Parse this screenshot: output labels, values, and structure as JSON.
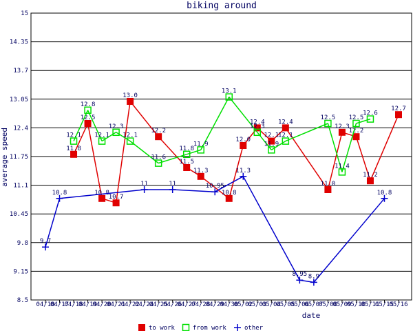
{
  "chart_data": {
    "type": "line",
    "title": "biking around",
    "x_label": "date",
    "y_label": "average speed",
    "categories": [
      "04/10",
      "04/17",
      "04/18",
      "04/19",
      "04/20",
      "04/21",
      "04/22",
      "04/24",
      "04/25",
      "04/26",
      "04/27",
      "04/28",
      "04/29",
      "04/30",
      "05/02",
      "05/03",
      "05/04",
      "05/05",
      "05/06",
      "05/07",
      "05/08",
      "05/09",
      "05/10",
      "05/11",
      "05/15",
      "05/16"
    ],
    "series": [
      {
        "name": "to work",
        "color": "#e00000",
        "marker": "filled-square",
        "values": [
          null,
          null,
          11.8,
          12.5,
          10.8,
          10.7,
          13.0,
          null,
          12.2,
          null,
          11.5,
          11.3,
          null,
          10.8,
          12.0,
          12.4,
          12.1,
          12.4,
          null,
          null,
          11.0,
          12.3,
          12.2,
          11.2,
          null,
          12.7
        ],
        "value_labels": [
          null,
          null,
          "11.8",
          "12.5",
          "10.8",
          "10.7",
          "13.0",
          null,
          "12.2",
          null,
          "11.5",
          "11.3",
          null,
          "10.8",
          "12.0",
          "12.4",
          "12.1",
          "12.4",
          null,
          null,
          "11.0",
          "12.3",
          "12.2",
          "11.2",
          null,
          "12.7"
        ]
      },
      {
        "name": "from work",
        "color": "#00e000",
        "marker": "open-square",
        "values": [
          null,
          null,
          12.1,
          12.8,
          12.1,
          12.3,
          12.1,
          null,
          11.6,
          null,
          11.8,
          11.9,
          null,
          13.1,
          null,
          12.3,
          11.9,
          12.1,
          null,
          null,
          12.5,
          11.4,
          12.5,
          12.6,
          null,
          null
        ],
        "value_labels": [
          null,
          null,
          "12.1",
          "12.8",
          "12.1",
          "12.3",
          "12.1",
          null,
          "11.6",
          null,
          "11.8",
          "11.9",
          null,
          "13.1",
          null,
          "12.3",
          "11.9",
          "12.1",
          null,
          null,
          "12.5",
          "11.4",
          "12.5",
          "12.6",
          null,
          null
        ]
      },
      {
        "name": "other",
        "color": "#0000cc",
        "marker": "plus",
        "values": [
          9.7,
          10.8,
          null,
          null,
          null,
          null,
          null,
          11,
          null,
          11,
          null,
          null,
          10.95,
          null,
          11.3,
          null,
          null,
          null,
          8.95,
          8.9,
          null,
          null,
          null,
          null,
          10.8,
          null
        ],
        "value_labels": [
          null,
          null,
          null,
          null,
          null,
          null,
          null,
          null,
          null,
          null,
          null,
          null,
          null,
          null,
          null,
          null,
          null,
          null,
          null,
          null,
          null,
          null,
          null,
          null,
          null,
          null
        ]
      }
    ],
    "ylim": [
      8.5,
      15
    ],
    "yticks": [
      8.5,
      9.15,
      9.8,
      10.45,
      11.1,
      11.75,
      12.4,
      13.05,
      13.7,
      14.35,
      15
    ],
    "grid": true
  }
}
